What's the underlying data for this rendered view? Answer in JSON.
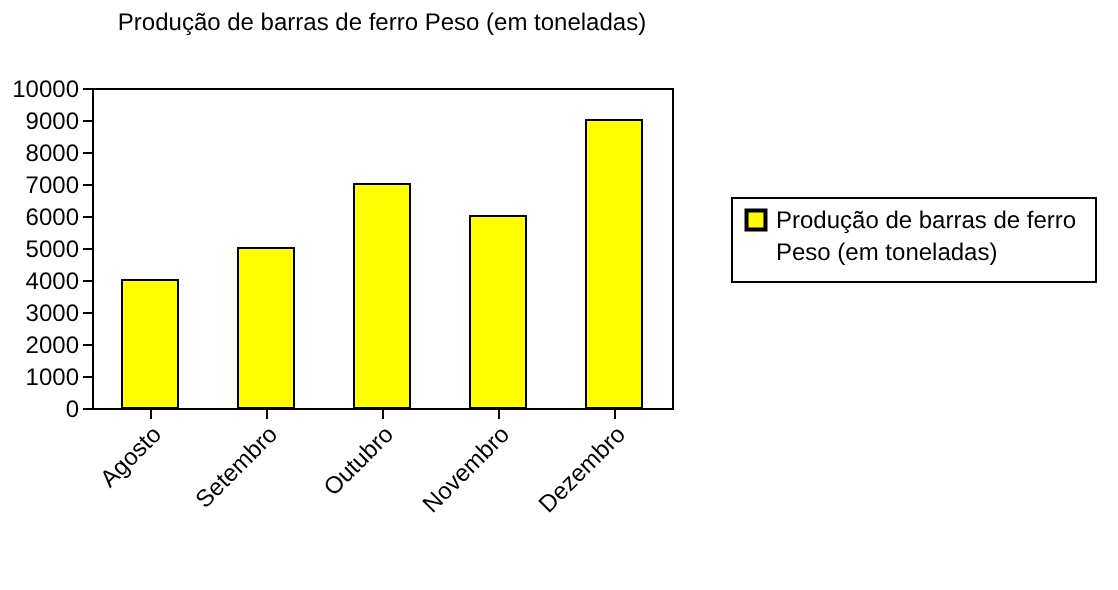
{
  "chart_data": {
    "type": "bar",
    "title": "Produção de barras de ferro Peso (em toneladas)",
    "categories": [
      "Agosto",
      "Setembro",
      "Outubro",
      "Novembro",
      "Dezembro"
    ],
    "series": [
      {
        "name": "Produção de barras de ferro Peso (em toneladas)",
        "color": "#ffff00",
        "values": [
          4000,
          5000,
          7000,
          6000,
          9000
        ]
      }
    ],
    "ylim": [
      0,
      10000
    ],
    "yticks": [
      0,
      1000,
      2000,
      3000,
      4000,
      5000,
      6000,
      7000,
      8000,
      9000,
      10000
    ],
    "grid": false,
    "legend": "right"
  }
}
